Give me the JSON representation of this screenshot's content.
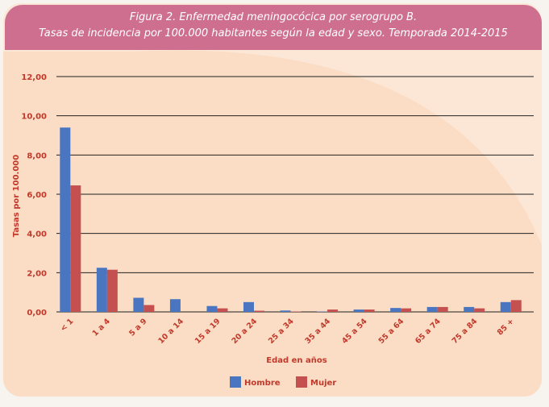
{
  "figure": {
    "title_line1": "Figura 2. Enfermedad meningocócica por serogrupo B.",
    "title_line2": "Tasas de incidencia por 100.000 habitantes  según la edad y sexo. Temporada 2014-2015"
  },
  "colors": {
    "header": "#cf6f8f",
    "panel": "#fce7d6",
    "hombre": "#4a76c1",
    "mujer": "#c4504f",
    "axis_text": "#c0392b"
  },
  "chart_data": {
    "type": "bar",
    "title": "",
    "xlabel": "Edad en años",
    "ylabel": "Tasas por 100.000",
    "categories": [
      "< 1",
      "1 a 4",
      "5 a 9",
      "10 a 14",
      "15 a 19",
      "20 a 24",
      "25 a 34",
      "35 a 44",
      "45 a 54",
      "55 a 64",
      "65 a 74",
      "75 a 84",
      "85 +"
    ],
    "series": [
      {
        "name": "Hombre",
        "values": [
          9.4,
          2.25,
          0.72,
          0.65,
          0.3,
          0.5,
          0.07,
          0.02,
          0.12,
          0.2,
          0.25,
          0.25,
          0.5
        ]
      },
      {
        "name": "Mujer",
        "values": [
          6.45,
          2.15,
          0.35,
          0.0,
          0.18,
          0.06,
          0.02,
          0.12,
          0.12,
          0.18,
          0.25,
          0.18,
          0.6
        ]
      }
    ],
    "ylim": [
      0,
      12
    ],
    "yticks": [
      "0,00",
      "2,00",
      "4,00",
      "6,00",
      "8,00",
      "10,00",
      "12,00"
    ],
    "grid": true,
    "legend_position": "bottom-center"
  }
}
